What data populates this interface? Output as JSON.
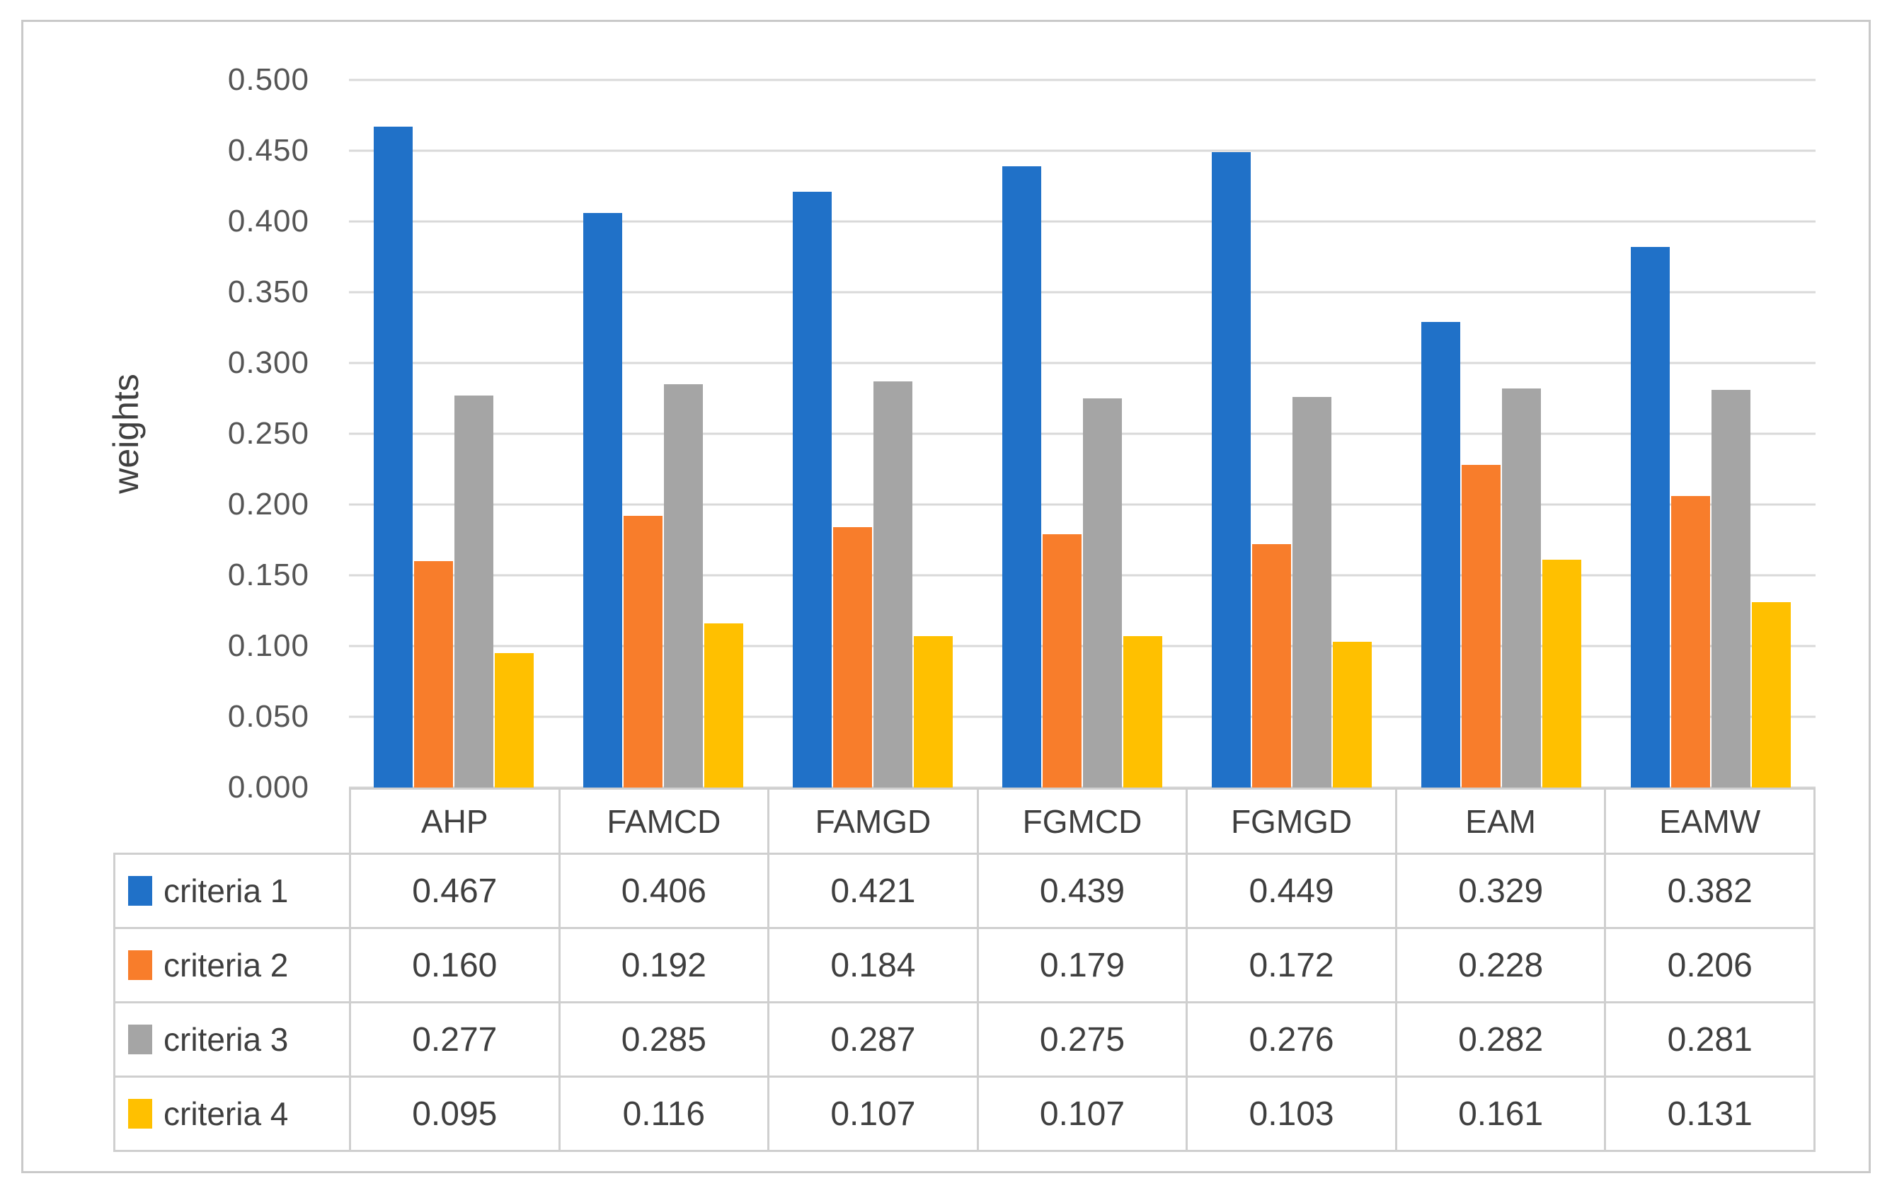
{
  "chart_data": {
    "type": "bar",
    "title": "",
    "xlabel": "",
    "ylabel": "weights",
    "ylim": [
      0,
      0.5
    ],
    "grid": true,
    "legend_position": "table-left",
    "y_ticks": [
      "0.500",
      "0.450",
      "0.400",
      "0.350",
      "0.300",
      "0.250",
      "0.200",
      "0.150",
      "0.100",
      "0.050",
      "0.000"
    ],
    "categories": [
      "AHP",
      "FAMCD",
      "FAMGD",
      "FGMCD",
      "FGMGD",
      "EAM",
      "EAMW"
    ],
    "series": [
      {
        "name": "criteria 1",
        "color": "#2071C8",
        "values": [
          0.467,
          0.406,
          0.421,
          0.439,
          0.449,
          0.329,
          0.382
        ]
      },
      {
        "name": "criteria 2",
        "color": "#F87D2B",
        "values": [
          0.16,
          0.192,
          0.184,
          0.179,
          0.172,
          0.228,
          0.206
        ]
      },
      {
        "name": "criteria 3",
        "color": "#A5A5A5",
        "values": [
          0.277,
          0.285,
          0.287,
          0.275,
          0.276,
          0.282,
          0.281
        ]
      },
      {
        "name": "criteria 4",
        "color": "#FFC000",
        "values": [
          0.095,
          0.116,
          0.107,
          0.107,
          0.103,
          0.161,
          0.131
        ]
      }
    ],
    "value_decimals": 3
  }
}
